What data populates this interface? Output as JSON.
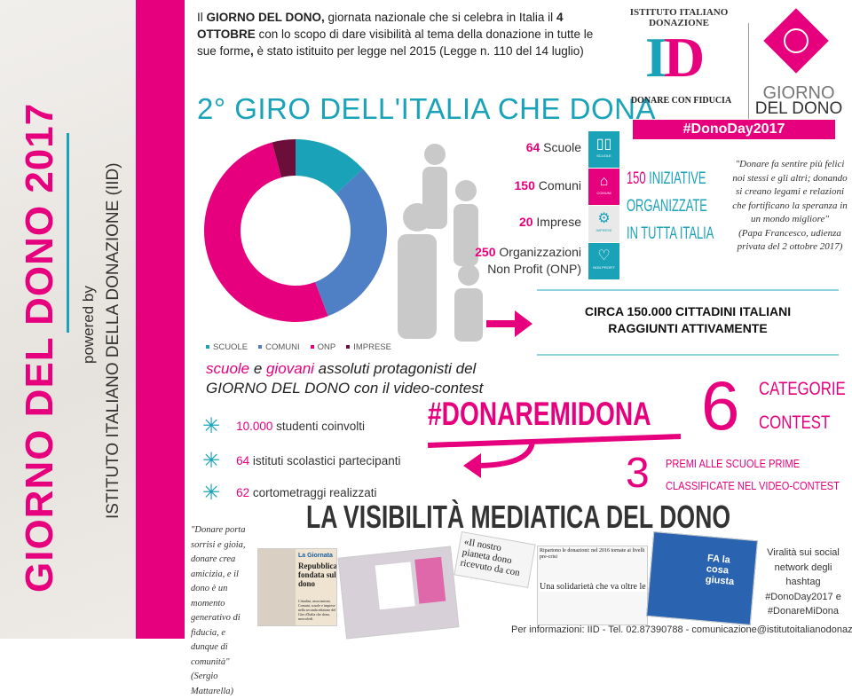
{
  "sidebar": {
    "title": "GIORNO DEL DONO 2017",
    "powered_by": "powered by",
    "institute": "ISTITUTO ITALIANO DELLA DONAZIONE (IID)"
  },
  "intro": {
    "p1": "Il ",
    "b1": "GIORNO DEL DONO,",
    "p2": " giornata nazionale che si celebra in Italia il ",
    "b2": "4 OTTOBRE",
    "p3": " con lo scopo di dare visibilità al tema della donazione in tutte le sue forme",
    "b3": ",",
    "p4": " è stato istituito per legge nel 2015 (Legge n. 110 del 14 luglio)"
  },
  "logo": {
    "arc_text": "ISTITUTO ITALIANO DONAZIONE",
    "letters": "ID",
    "motto": "DONARE CON FIDUCIA",
    "giorno": "GIORNO",
    "del_dono": "DEL DONO",
    "hashtag": "#DonoDay2017"
  },
  "section_title": "2° GIRO DELL'ITALIA CHE DONA",
  "colors": {
    "pink": "#e6007e",
    "teal": "#1aa3b8",
    "blue": "#4f7fc4",
    "dark": "#6b0f3a",
    "gray": "#c8c8c8"
  },
  "chart_data": {
    "type": "pie",
    "donut": true,
    "categories": [
      "SCUOLE",
      "COMUNI",
      "ONP",
      "IMPRESE"
    ],
    "values": [
      64,
      150,
      250,
      20
    ],
    "colors": [
      "#1aa3b8",
      "#4f7fc4",
      "#e6007e",
      "#6b0f3a"
    ],
    "legend": "bottom"
  },
  "stats": [
    {
      "num": "64",
      "label": " Scuole"
    },
    {
      "num": "150",
      "label": " Comuni"
    },
    {
      "num": "20",
      "label": " Imprese"
    },
    {
      "num": "250",
      "label": " Organizzazioni",
      "label2": "Non Profit (ONP)"
    }
  ],
  "tiles": [
    {
      "icon": "book-icon",
      "glyph": "▯▯",
      "caption": "SCUOLE",
      "color": "#1aa3b8"
    },
    {
      "icon": "town-hall-icon",
      "glyph": "🏛",
      "caption": "COMUNI",
      "color": "#e6007e"
    },
    {
      "icon": "gears-icon",
      "glyph": "⚙",
      "caption": "IMPRESE",
      "color": "#e9e9e9"
    },
    {
      "icon": "heart-icon",
      "glyph": "♡",
      "caption": "NON PROFIT",
      "color": "#1aa3b8"
    }
  ],
  "initiatives": {
    "num": "150",
    "l1": " INIZIATIVE",
    "l2": "ORGANIZZATE",
    "l3": "IN TUTTA ITALIA"
  },
  "quote_pope": {
    "text": "\"Donare fa sentire più felici noi stessi e gli altri; donando si creano legami e relazioni che fortificano la speranza in un mondo migliore\"",
    "author": "(Papa Francesco, udienza privata del 2 ottobre 2017)"
  },
  "citizens": {
    "l1": "CIRCA 150.000 CITTADINI ITALIANI",
    "l2": "RAGGIUNTI ATTIVAMENTE"
  },
  "schools_heading": {
    "w1": "scuole",
    "w2": " e ",
    "w3": "giovani",
    "w4": " assoluti protagonisti del",
    "w5": "GIORNO DEL DONO",
    "w6": " con il video-contest"
  },
  "bullets": [
    {
      "num": "10.000",
      "text": " studenti coinvolti"
    },
    {
      "num": "64",
      "text": " istituti scolastici partecipanti"
    },
    {
      "num": "62",
      "text": " cortometraggi realizzati"
    }
  ],
  "contest": {
    "hashtag": "#DONAREMIDONA",
    "six": "6",
    "cat1": "CATEGORIE",
    "cat2": "CONTEST",
    "three": "3",
    "premi1": "PREMI ALLE SCUOLE PRIME",
    "premi2": "CLASSIFICATE NEL VIDEO-CONTEST"
  },
  "media_title": "LA VISIBILITÀ MEDIATICA DEL DONO",
  "quote_mattarella": {
    "text": "\"Donare porta sorrisi e gioia, donare crea amicizia, e il dono è un momento generativo di fiducia, e dunque di comunità\"",
    "author": "(Sergio Mattarella)"
  },
  "clippings": {
    "c1_kicker": "La Giornata",
    "c1_head": "Repubblica fondata sul dono",
    "c1_body": "Cittadini, associazioni, Comuni, scuole e imprese nella seconda edizione del Giro d'Italia che dona, mercoledì.",
    "c2_head": "«Il nostro pianeta dono ricevuto da con",
    "c3_head": "Ripartono le donazioni: nel 2016 tornate ai livelli pre-crisi",
    "c4_head": "Una solidarietà che va oltre le emergenze",
    "c5_head": "FA la cosa giusta"
  },
  "virality": {
    "l1": "Viralità sui social network degli hashtag",
    "l2": "#DonoDay2017 e",
    "l3": "#DonareMiDona"
  },
  "footer": "Per informazioni: IID - Tel. 02.87390788 - comunicazione@istitutoitalianodonazione.it"
}
